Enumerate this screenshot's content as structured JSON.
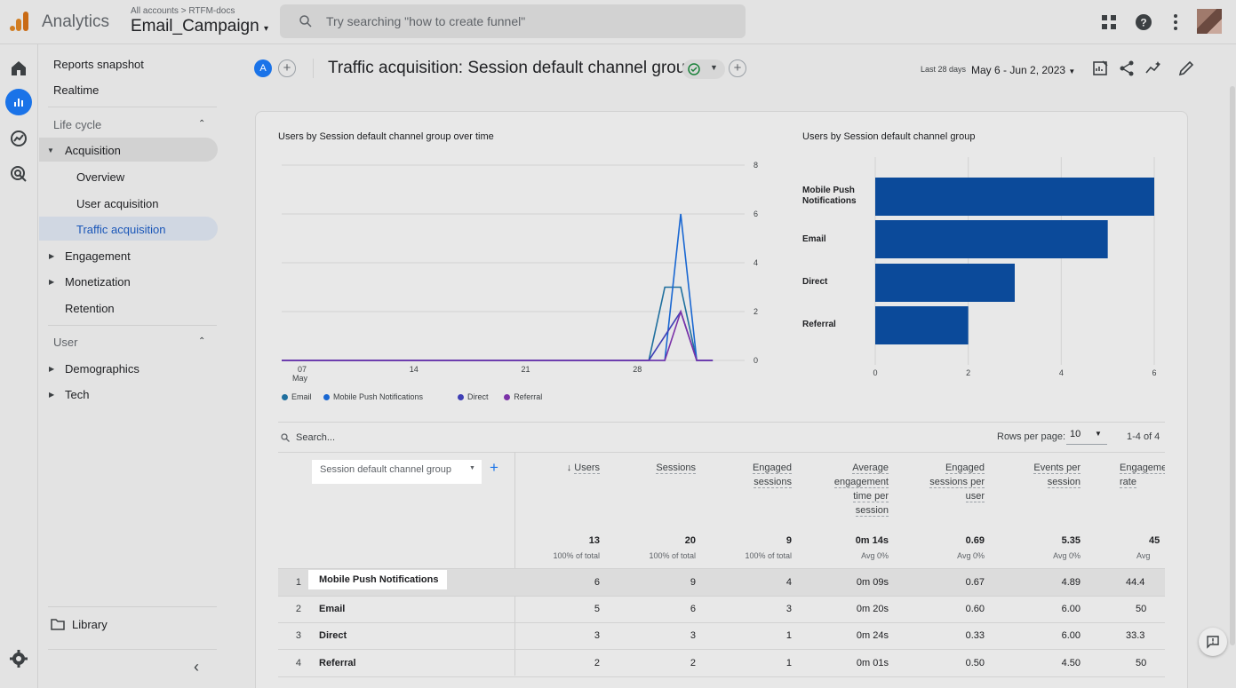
{
  "header": {
    "app_name": "Analytics",
    "breadcrumb": "All accounts > RTFM-docs",
    "property": "Email_Campaign",
    "search_placeholder": "Try searching \"how to create funnel\""
  },
  "sidebar": {
    "items": [
      {
        "label": "Reports snapshot"
      },
      {
        "label": "Realtime"
      }
    ],
    "lifecycle_label": "Life cycle",
    "acquisition": "Acquisition",
    "acq_children": [
      "Overview",
      "User acquisition",
      "Traffic acquisition"
    ],
    "engagement": "Engagement",
    "monetization": "Monetization",
    "retention": "Retention",
    "user_label": "User",
    "demographics": "Demographics",
    "tech": "Tech",
    "library": "Library"
  },
  "page": {
    "avatar_letter": "A",
    "title": "Traffic acquisition: Session default channel group",
    "date_label": "Last 28 days",
    "date_range": "May 6 - Jun 2, 2023"
  },
  "chart_data": [
    {
      "type": "line",
      "title": "Users by Session default channel group over time",
      "x_tick_labels": [
        "07",
        "14",
        "21",
        "28"
      ],
      "x_sub_label": "May",
      "y_ticks": [
        0,
        2,
        4,
        6,
        8
      ],
      "ylim": [
        0,
        8
      ],
      "legend": "bottom",
      "series": [
        {
          "name": "Email",
          "color": "#1f6f9e",
          "values": [
            [
              29,
              0
            ],
            [
              30,
              3
            ],
            [
              31,
              3
            ],
            [
              32,
              0
            ]
          ]
        },
        {
          "name": "Mobile Push Notifications",
          "color": "#1967d2",
          "values": [
            [
              29,
              0
            ],
            [
              30,
              0
            ],
            [
              31,
              6
            ],
            [
              32,
              0
            ]
          ]
        },
        {
          "name": "Direct",
          "color": "#3f3fb5",
          "values": [
            [
              29,
              0
            ],
            [
              30,
              1
            ],
            [
              31,
              2
            ],
            [
              32,
              0
            ]
          ]
        },
        {
          "name": "Referral",
          "color": "#7b32a8",
          "values": [
            [
              29,
              0
            ],
            [
              30,
              0
            ],
            [
              31,
              2
            ],
            [
              32,
              0
            ]
          ]
        }
      ]
    },
    {
      "type": "bar",
      "title": "Users by Session default channel group",
      "orientation": "horizontal",
      "categories": [
        "Mobile Push Notifications",
        "Email",
        "Direct",
        "Referral"
      ],
      "values": [
        6,
        5,
        3,
        2
      ],
      "x_ticks": [
        0,
        2,
        4,
        6
      ],
      "xlim": [
        0,
        6
      ],
      "color": "#0b4a9a"
    }
  ],
  "table": {
    "search_placeholder": "Search...",
    "rows_label": "Rows per page:",
    "rows_value": "10",
    "pagination": "1-4 of 4",
    "dimension": "Session default channel group",
    "columns": [
      {
        "label": "Users",
        "total": "13",
        "sub": "100% of total"
      },
      {
        "label": "Sessions",
        "total": "20",
        "sub": "100% of total"
      },
      {
        "label": "Engaged sessions",
        "total": "9",
        "sub": "100% of total"
      },
      {
        "label": "Average engagement time per session",
        "total": "0m 14s",
        "sub": "Avg 0%"
      },
      {
        "label": "Engaged sessions per user",
        "total": "0.69",
        "sub": "Avg 0%"
      },
      {
        "label": "Events per session",
        "total": "5.35",
        "sub": "Avg 0%"
      },
      {
        "label": "Engagement rate",
        "total": "45",
        "sub": "Avg"
      }
    ],
    "rows": [
      {
        "n": "1",
        "name": "Mobile Push Notifications",
        "cells": [
          "6",
          "9",
          "4",
          "0m 09s",
          "0.67",
          "4.89",
          "44.4"
        ]
      },
      {
        "n": "2",
        "name": "Email",
        "cells": [
          "5",
          "6",
          "3",
          "0m 20s",
          "0.60",
          "6.00",
          "50"
        ]
      },
      {
        "n": "3",
        "name": "Direct",
        "cells": [
          "3",
          "3",
          "1",
          "0m 24s",
          "0.33",
          "6.00",
          "33.3"
        ]
      },
      {
        "n": "4",
        "name": "Referral",
        "cells": [
          "2",
          "2",
          "1",
          "0m 01s",
          "0.50",
          "4.50",
          "50"
        ]
      }
    ]
  }
}
